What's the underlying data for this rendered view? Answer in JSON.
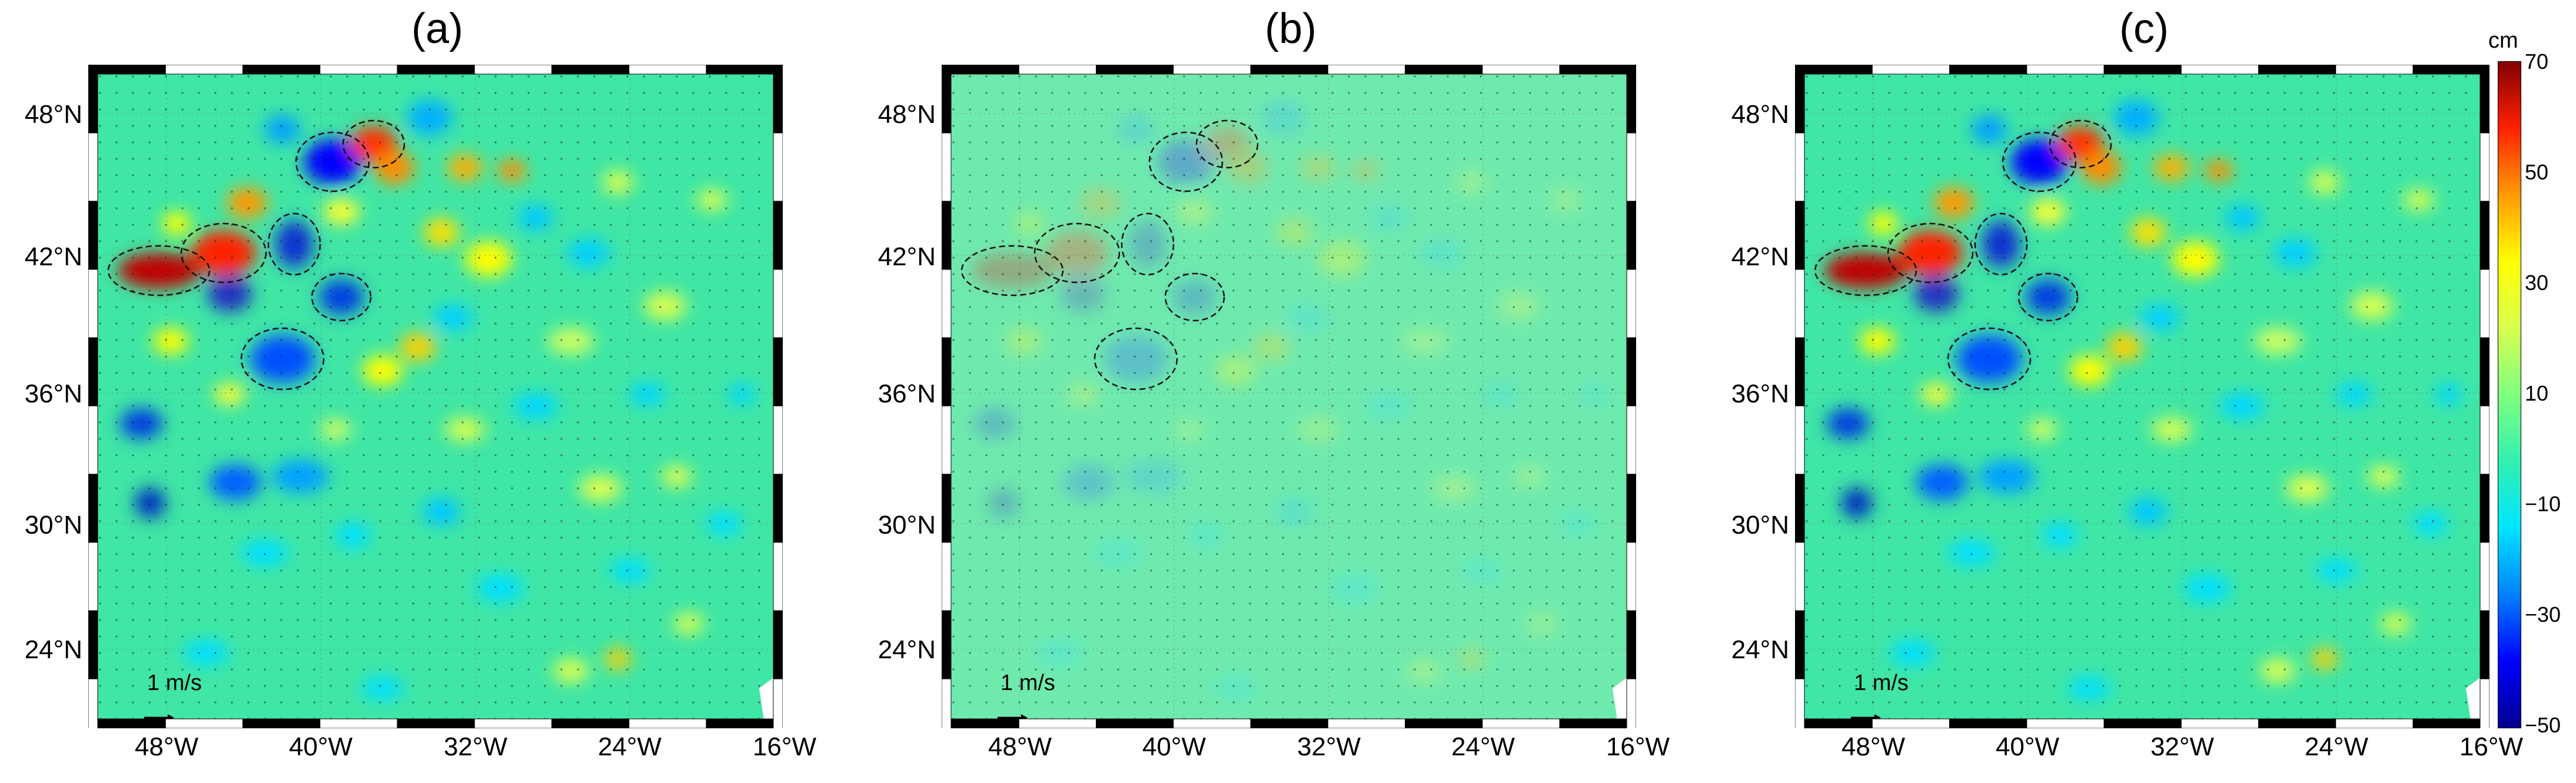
{
  "panels": [
    {
      "title": "(a)",
      "style": "full"
    },
    {
      "title": "(b)",
      "style": "faded"
    },
    {
      "title": "(c)",
      "style": "full"
    }
  ],
  "lat_labels": [
    "48°N",
    "42°N",
    "36°N",
    "30°N",
    "24°N"
  ],
  "lon_labels": [
    "48°W",
    "40°W",
    "32°W",
    "24°W",
    "16°W"
  ],
  "scale_arrow_label": "1 m/s",
  "colorbar": {
    "unit": "cm",
    "ticks": [
      "70",
      "50",
      "30",
      "10",
      "−10",
      "−30",
      "−50"
    ],
    "range": [
      -50,
      70
    ],
    "colors": [
      "#00008f",
      "#0000ff",
      "#0080ff",
      "#00e5ff",
      "#31f0b0",
      "#7fff7f",
      "#d8ff50",
      "#ffff00",
      "#ff9a00",
      "#ff2000",
      "#800000"
    ]
  },
  "colors": {
    "ocean_base": "#3fe6a5",
    "frame": "#000000",
    "land": "#ffffff"
  }
}
